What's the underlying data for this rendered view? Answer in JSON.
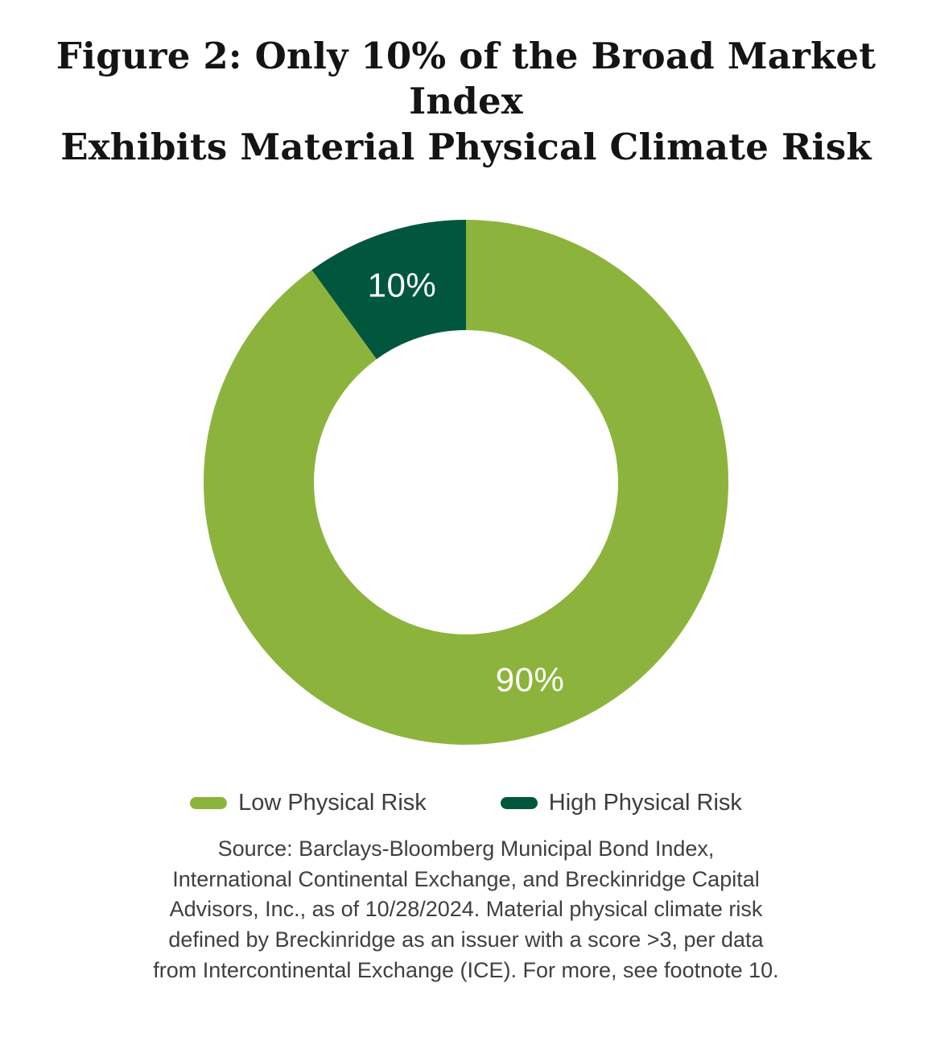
{
  "page": {
    "title_lines": [
      "Figure 2: Only 10% of the Broad Market Index",
      "Exhibits Material Physical Climate Risk"
    ],
    "source_lines": [
      "Source: Barclays-Bloomberg Municipal Bond Index,",
      "International Continental Exchange, and Breckinridge Capital",
      "Advisors, Inc., as of 10/28/2024. Material physical climate risk",
      "defined by Breckinridge as an issuer with a score >3, per data",
      "from Intercontinental Exchange (ICE). For more, see footnote 10."
    ]
  },
  "chart_data": {
    "type": "pie",
    "variant": "donut",
    "title": "Figure 2: Only 10% of the Broad Market Index Exhibits Material Physical Climate Risk",
    "slices": [
      {
        "label": "Low Physical Risk",
        "value": 90,
        "display": "90%",
        "color": "#8CB43D"
      },
      {
        "label": "High Physical Risk",
        "value": 10,
        "display": "10%",
        "color": "#00573D"
      }
    ],
    "start_angle_deg": 0,
    "direction": "clockwise",
    "inner_radius_ratio": 0.58,
    "label_color": "#ffffff",
    "legend_position": "bottom",
    "background": "#ffffff"
  }
}
